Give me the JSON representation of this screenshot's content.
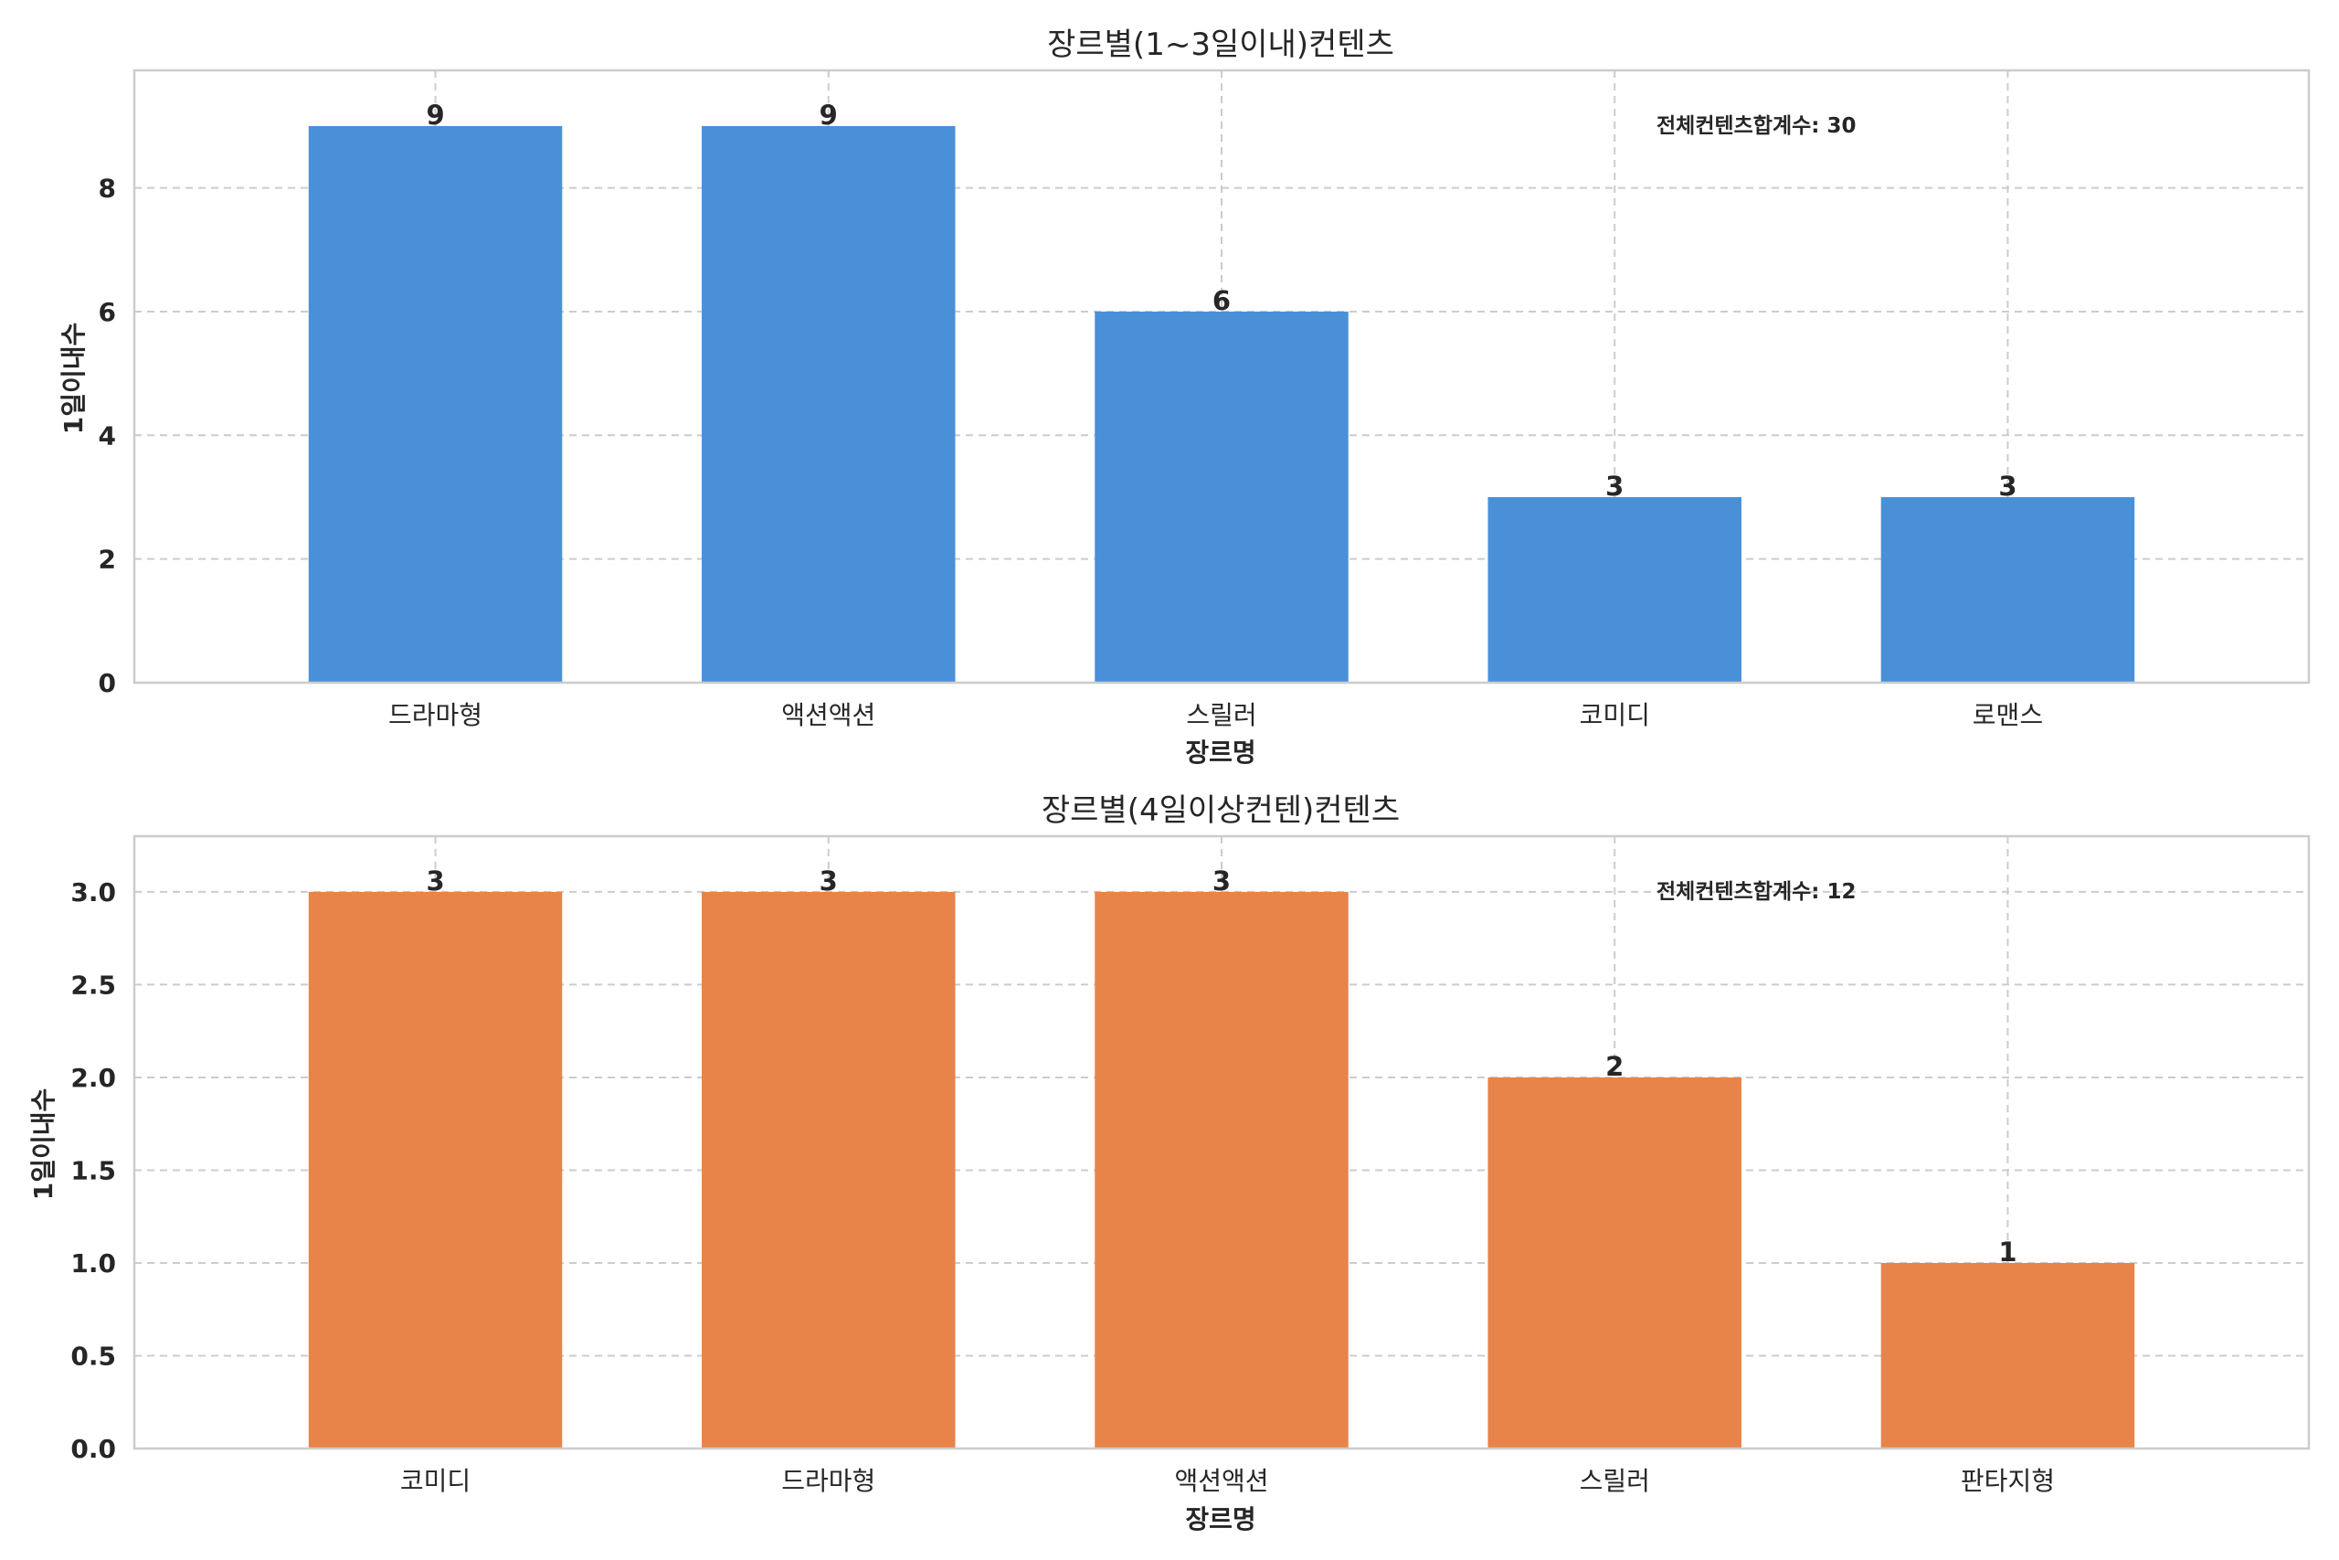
{
  "chart_data": [
    {
      "type": "bar",
      "title": "장르별(1~3일이내)컨텐츠",
      "xlabel": "장르명",
      "ylabel": "1일이내수",
      "categories": [
        "드라마형",
        "액션액션",
        "스릴러",
        "코미디",
        "로맨스"
      ],
      "values": [
        9,
        9,
        6,
        3,
        3
      ],
      "ylim": [
        0,
        9.9
      ],
      "yticks": [
        0,
        2,
        4,
        6,
        8
      ],
      "tick_format": "int",
      "color": "#4a90d9",
      "annotation": "전체컨텐츠합계수: 30",
      "grid": true
    },
    {
      "type": "bar",
      "title": "장르별(4일이상컨텐)컨텐츠",
      "xlabel": "장르명",
      "ylabel": "1일이내수",
      "categories": [
        "코미디",
        "드라마형",
        "액션액션",
        "스릴러",
        "판타지형"
      ],
      "values": [
        3,
        3,
        3,
        2,
        1
      ],
      "ylim": [
        0,
        3.3
      ],
      "yticks": [
        0,
        0.5,
        1.0,
        1.5,
        2.0,
        2.5,
        3.0
      ],
      "tick_format": "1f",
      "color": "#e8844a",
      "annotation": "전체컨텐츠합계수: 12",
      "grid": true
    }
  ]
}
